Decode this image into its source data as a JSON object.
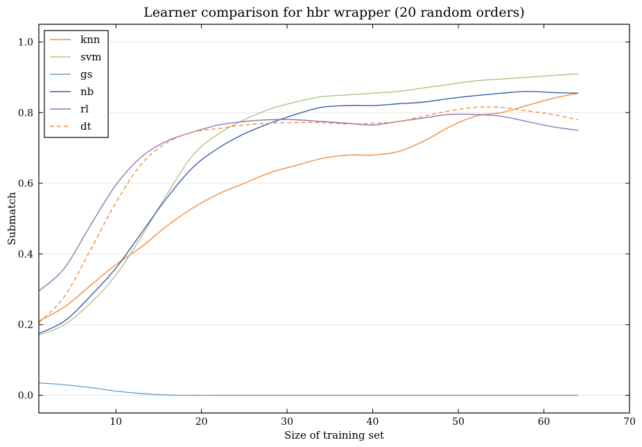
{
  "chart_data": {
    "type": "line",
    "title": "Learner comparison for hbr wrapper (20 random orders)",
    "xlabel": "Size of training set",
    "ylabel": "Submatch",
    "xlim": [
      1,
      70
    ],
    "ylim": [
      -0.05,
      1.05
    ],
    "xticks": [
      10,
      20,
      30,
      40,
      50,
      60,
      70
    ],
    "yticks": [
      0.0,
      0.2,
      0.4,
      0.6,
      0.8,
      1.0
    ],
    "grid": "horizontal",
    "legend_position": "top-left",
    "x": [
      1,
      4,
      7,
      10,
      13,
      16,
      19,
      22,
      25,
      28,
      31,
      34,
      37,
      40,
      43,
      46,
      49,
      52,
      55,
      58,
      61,
      64
    ],
    "series": [
      {
        "name": "knn",
        "color": "#f08c3c",
        "dash": "solid",
        "values": [
          0.21,
          0.25,
          0.31,
          0.37,
          0.42,
          0.48,
          0.53,
          0.57,
          0.6,
          0.63,
          0.65,
          0.67,
          0.68,
          0.68,
          0.69,
          0.72,
          0.76,
          0.79,
          0.8,
          0.82,
          0.84,
          0.855
        ]
      },
      {
        "name": "svm",
        "color": "#aec484",
        "dash": "solid",
        "values": [
          0.17,
          0.2,
          0.26,
          0.34,
          0.45,
          0.57,
          0.68,
          0.74,
          0.78,
          0.81,
          0.83,
          0.845,
          0.85,
          0.855,
          0.86,
          0.87,
          0.88,
          0.89,
          0.895,
          0.9,
          0.905,
          0.91
        ]
      },
      {
        "name": "gs",
        "color": "#6ea0c8",
        "dash": "solid",
        "values": [
          0.035,
          0.03,
          0.022,
          0.012,
          0.005,
          0.001,
          0.0,
          0.0,
          0.0,
          0.0,
          0.0,
          0.0,
          0.0,
          0.0,
          0.0,
          0.0,
          0.0,
          0.0,
          0.0,
          0.0,
          0.0,
          0.0
        ]
      },
      {
        "name": "nb",
        "color": "#3a5ab0",
        "dash": "solid",
        "values": [
          0.175,
          0.21,
          0.28,
          0.36,
          0.46,
          0.56,
          0.645,
          0.7,
          0.74,
          0.77,
          0.795,
          0.815,
          0.82,
          0.82,
          0.825,
          0.83,
          0.84,
          0.848,
          0.855,
          0.86,
          0.857,
          0.855
        ]
      },
      {
        "name": "rl",
        "color": "#8a78b4",
        "dash": "solid",
        "values": [
          0.295,
          0.36,
          0.48,
          0.595,
          0.675,
          0.72,
          0.745,
          0.765,
          0.775,
          0.78,
          0.78,
          0.775,
          0.77,
          0.765,
          0.775,
          0.785,
          0.795,
          0.795,
          0.79,
          0.775,
          0.76,
          0.75
        ]
      },
      {
        "name": "dt",
        "color": "#f08c3c",
        "dash": "dashed",
        "values": [
          0.205,
          0.28,
          0.41,
          0.545,
          0.655,
          0.715,
          0.745,
          0.755,
          0.765,
          0.77,
          0.772,
          0.772,
          0.768,
          0.77,
          0.775,
          0.79,
          0.805,
          0.815,
          0.815,
          0.805,
          0.795,
          0.78
        ]
      }
    ]
  }
}
